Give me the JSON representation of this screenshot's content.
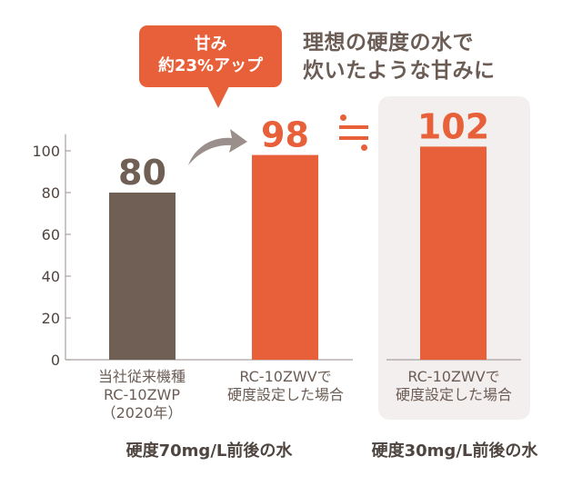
{
  "headline": {
    "line1": "理想の硬度の水で",
    "line2": "炊いたような甘みに"
  },
  "callout": {
    "line1": "甘み",
    "line2": "約23%アップ"
  },
  "approx_symbol": "≒",
  "groups": [
    {
      "label": "硬度70mg/L前後の水"
    },
    {
      "label": "硬度30mg/L前後の水"
    }
  ],
  "colors": {
    "brown": "#6f5f55",
    "orange": "#e8603a",
    "panel": "#f3efee",
    "axis": "#a9a2a0",
    "arrow": "#9b8f8b"
  },
  "chart_data": {
    "type": "bar",
    "title": "",
    "xlabel": "",
    "ylabel": "",
    "ylim": [
      0,
      108
    ],
    "yticks": [
      0,
      20,
      40,
      60,
      80,
      100
    ],
    "grid": false,
    "categories": [
      [
        "当社従来機種",
        "RC-10ZWP",
        "（2020年）"
      ],
      [
        "RC-10ZWVで",
        "硬度設定した場合"
      ],
      [
        "RC-10ZWVで",
        "硬度設定した場合"
      ]
    ],
    "values": [
      80,
      98,
      102
    ],
    "value_labels": [
      "80",
      "98",
      "102"
    ],
    "bar_colors": [
      "#6f5f55",
      "#e8603a",
      "#e8603a"
    ],
    "group_of_bar": [
      0,
      0,
      1
    ]
  }
}
